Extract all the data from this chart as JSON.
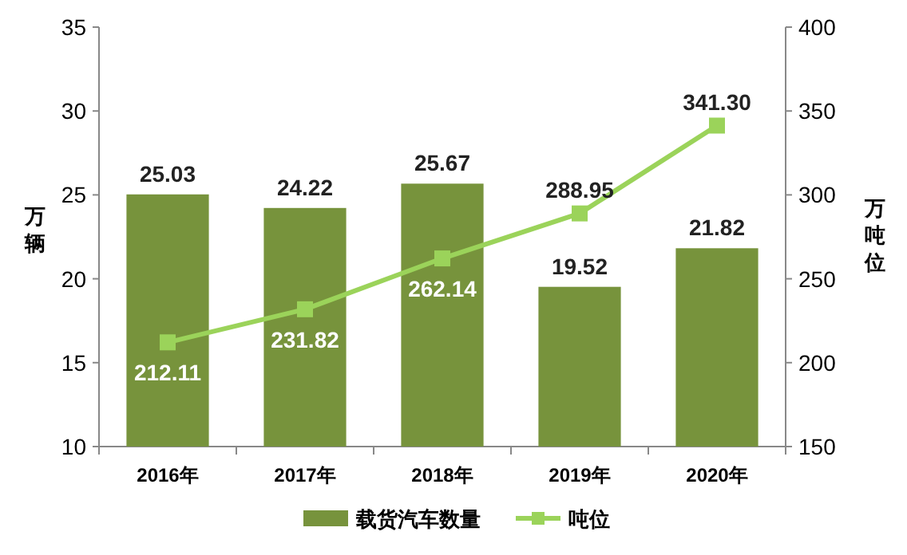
{
  "chart_data": {
    "type": "bar",
    "categories": [
      "2016年",
      "2017年",
      "2018年",
      "2019年",
      "2020年"
    ],
    "ylabel": "万辆",
    "y2label": "万吨位",
    "ylim": [
      10,
      35
    ],
    "yticks": [
      10,
      15,
      20,
      25,
      30,
      35
    ],
    "y2lim": [
      150,
      400
    ],
    "y2ticks": [
      150,
      200,
      250,
      300,
      350,
      400
    ],
    "legend": "bottom",
    "grid": false,
    "series": [
      {
        "name": "载货汽车数量",
        "color": "#77933c",
        "values": [
          25.03,
          24.22,
          25.67,
          19.52,
          21.82
        ],
        "value_labels": [
          "25.03",
          "24.22",
          "25.67",
          "19.52",
          "21.82"
        ]
      },
      {
        "name": "吨位",
        "type": "line",
        "axis": "y2",
        "color": "#9bd35a",
        "marker": "square",
        "values": [
          212.11,
          231.82,
          262.14,
          288.95,
          341.3
        ],
        "value_labels": [
          "212.11",
          "231.82",
          "262.14",
          "288.95",
          "341.30"
        ]
      }
    ]
  }
}
